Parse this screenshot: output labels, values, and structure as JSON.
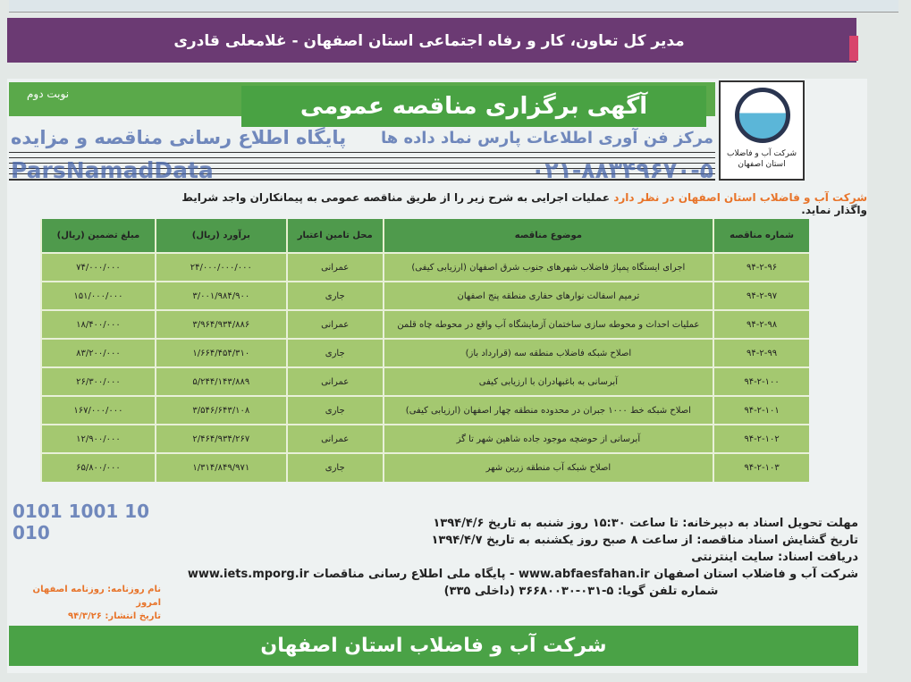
{
  "header_banner": "مدیر کل تعاون، کار و رفاه اجتماعی استان اصفهان - غلامعلی قادری",
  "ad": {
    "title": "آگهی برگزاری مناقصه عمومی",
    "round": "نوبت دوم",
    "logo_text": "شرکت آب و فاضلاب استان اصفهان",
    "intro_org": "شرکت آب و فاضلاب استان اصفهان در نظر دارد",
    "intro_rest": " عملیات اجرایی به شرح زیر را از طریق مناقصه عمومی به پیمانکاران واجد شرایط واگذار نماید."
  },
  "table": {
    "headers": [
      "شماره مناقصه",
      "موضوع مناقصه",
      "محل تامین اعتبار",
      "برآورد (ریال)",
      "مبلغ تضمین (ریال)"
    ],
    "rows": [
      [
        "۹۴-۲-۹۶",
        "اجرای ایستگاه پمپاژ فاضلاب شهرهای جنوب شرق اصفهان (ارزیابی کیفی)",
        "عمرانی",
        "۲۴/۰۰۰/۰۰۰/۰۰۰",
        "۷۴/۰۰۰/۰۰۰"
      ],
      [
        "۹۴-۲-۹۷",
        "ترمیم اسفالت نوارهای حفاری منطقه پنج اصفهان",
        "جاری",
        "۳/۰۰۱/۹۸۴/۹۰۰",
        "۱۵۱/۰۰۰/۰۰۰"
      ],
      [
        "۹۴-۲-۹۸",
        "عملیات احداث و محوطه سازی ساختمان آزمایشگاه آب واقع در محوطه چاه قلمن",
        "عمرانی",
        "۳/۹۶۴/۹۳۴/۸۸۶",
        "۱۸/۴۰۰/۰۰۰"
      ],
      [
        "۹۴-۲-۹۹",
        "اصلاح شبکه فاضلاب منطقه سه (قرارداد باز)",
        "جاری",
        "۱/۶۶۴/۴۵۴/۳۱۰",
        "۸۳/۲۰۰/۰۰۰"
      ],
      [
        "۹۴-۲-۱۰۰",
        "آبرسانی به باغبهادران با ارزیابی کیفی",
        "عمرانی",
        "۵/۲۴۴/۱۴۳/۸۸۹",
        "۲۶/۳۰۰/۰۰۰"
      ],
      [
        "۹۴-۲-۱۰۱",
        "اصلاح شبکه خط ۱۰۰۰ جبران در محدوده منطقه چهار اصفهان (ارزیابی کیفی)",
        "جاری",
        "۳/۵۴۶/۶۴۳/۱۰۸",
        "۱۶۷/۰۰۰/۰۰۰"
      ],
      [
        "۹۴-۲-۱۰۲",
        "آبرسانی از حوضچه موجود جاده شاهین شهر تا گز",
        "عمرانی",
        "۲/۴۶۴/۹۳۴/۲۶۷",
        "۱۲/۹۰۰/۰۰۰"
      ],
      [
        "۹۴-۲-۱۰۳",
        "اصلاح شبکه آب منطقه زرین شهر",
        "جاری",
        "۱/۳۱۴/۸۴۹/۹۷۱",
        "۶۵/۸۰۰/۰۰۰"
      ]
    ]
  },
  "details": [
    "مهلت تحویل اسناد به دبیرخانه: تا ساعت ۱۵:۳۰ روز شنبه به تاریخ ۱۳۹۴/۴/۶",
    "تاریخ گشایش اسناد مناقصه: از ساعت ۸ صبح روز یکشنبه به تاریخ ۱۳۹۴/۴/۷",
    "دریافت اسناد: سایت اینترنتی",
    "شرکت آب و فاضلاب استان اصفهان www.abfaesfahan.ir - پایگاه ملی اطلاع رسانی مناقصات www.iets.mporg.ir",
    "شماره تلفن گویا: ۵-۰۳۱-۳۶۶۸۰۰۳۰ (داخلی ۳۳۵)"
  ],
  "newspaper": {
    "name": "نام روزنامه: روزنامه اصفهان امروز",
    "date": "تاریخ انتشار: ۹۴/۳/۲۶"
  },
  "footer": "شرکت آب و فاضلاب استان اصفهان",
  "watermark": {
    "brand": "ParsNamadData",
    "digits": "0101 1001 10 010",
    "line1": "مرکز فن آوری اطلاعات پارس نماد داده ها",
    "line2": "پایگاه اطلاع رسانی مناقصه و مزایده",
    "phone": "۰۲۱-۸۸۳۴۹۶۷۰-۵"
  },
  "colors": {
    "purple": "#6b3a73",
    "green": "#4aa246",
    "row": "#a4c870",
    "accent": "#e8742a"
  }
}
